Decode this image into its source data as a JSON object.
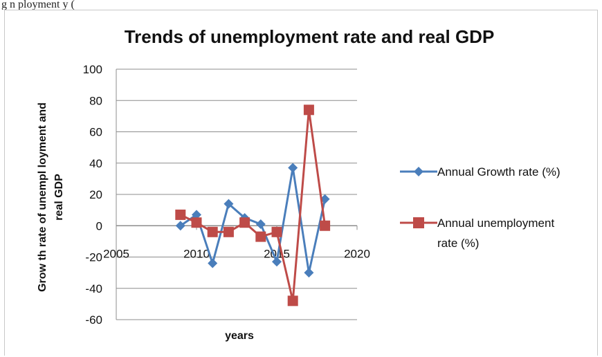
{
  "caption": "g                 n            ployment                                                                        y (",
  "chart_data": {
    "type": "line",
    "title": "Trends of unemployment rate and real GDP",
    "xlabel": "years",
    "ylabel_lines": [
      "Grow th  rate of unempl loyment and",
      "real GDP"
    ],
    "xlim": [
      2005,
      2020
    ],
    "ylim": [
      -60,
      100
    ],
    "x_ticks": [
      2005,
      2010,
      2015,
      2020
    ],
    "y_ticks": [
      100,
      80,
      60,
      40,
      20,
      0,
      -20,
      -40,
      -60
    ],
    "grid": "horizontal",
    "legend_position": "right",
    "x": [
      2009,
      2010,
      2011,
      2012,
      2013,
      2014,
      2015,
      2016,
      2017,
      2018
    ],
    "series": [
      {
        "name": "Annual Growth rate (%)",
        "legend_lines": [
          "Annual Growth rate (%)"
        ],
        "color": "#4a7ebb",
        "marker": "diamond",
        "values": [
          0,
          7,
          -24,
          14,
          5,
          1,
          -23,
          37,
          -30,
          17
        ]
      },
      {
        "name": "Annual unemployment rate (%)",
        "legend_lines": [
          "Annual unemployment",
          "rate (%)"
        ],
        "color": "#be4b48",
        "marker": "square",
        "values": [
          7,
          2,
          -4,
          -4,
          2,
          -7,
          -4,
          -48,
          74,
          0
        ]
      }
    ]
  }
}
